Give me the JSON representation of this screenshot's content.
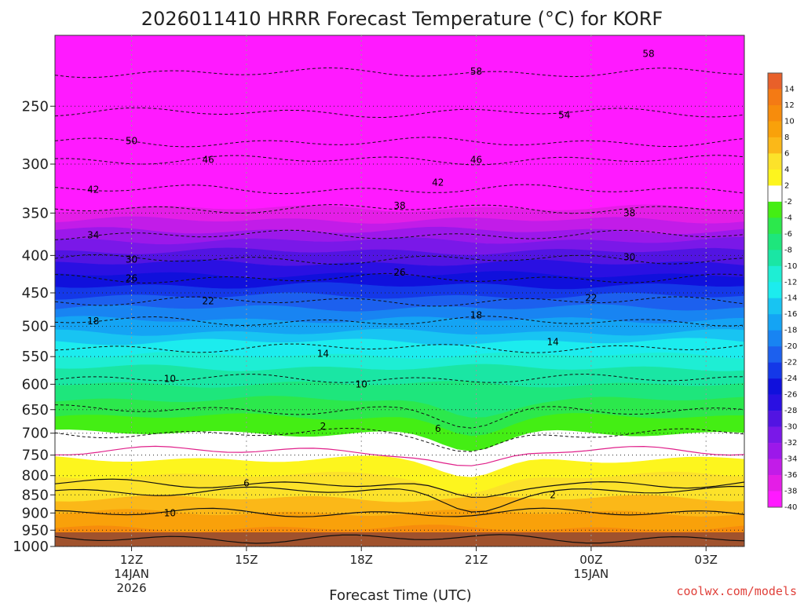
{
  "chart_data": {
    "type": "contour",
    "title": "2026011410 HRRR Forecast Temperature (°C) for KORF",
    "xlabel": "Forecast Time (UTC)",
    "ylabel": "",
    "x_ticks": [
      {
        "hour": 12,
        "label": "12Z",
        "sub1": "14JAN",
        "sub2": "2026"
      },
      {
        "hour": 15,
        "label": "15Z",
        "sub1": "",
        "sub2": ""
      },
      {
        "hour": 18,
        "label": "18Z",
        "sub1": "",
        "sub2": ""
      },
      {
        "hour": 21,
        "label": "21Z",
        "sub1": "",
        "sub2": ""
      },
      {
        "hour": 24,
        "label": "00Z",
        "sub1": "15JAN",
        "sub2": ""
      },
      {
        "hour": 27,
        "label": "03Z",
        "sub1": "",
        "sub2": ""
      }
    ],
    "xlim": [
      10,
      28
    ],
    "y_ticks": [
      250,
      300,
      350,
      400,
      450,
      500,
      550,
      600,
      650,
      700,
      750,
      800,
      850,
      900,
      950,
      1000
    ],
    "ylim": [
      200,
      1000
    ],
    "yscale": "log",
    "colorbar": {
      "labels": [
        "14",
        "12",
        "10",
        "8",
        "6",
        "4",
        "2",
        "-2",
        "-4",
        "-6",
        "-8",
        "-10",
        "-12",
        "-14",
        "-16",
        "-18",
        "-20",
        "-22",
        "-24",
        "-26",
        "-28",
        "-30",
        "-32",
        "-34",
        "-36",
        "-38",
        "-40"
      ],
      "colors": [
        "#e8602a",
        "#f47a14",
        "#f78c0c",
        "#f9a10a",
        "#fbb818",
        "#fce22a",
        "#fdf51e",
        "#ffffff",
        "#44ee14",
        "#2ce84c",
        "#1ee67c",
        "#1ae6a4",
        "#1eeed4",
        "#1cecee",
        "#18c4f2",
        "#14a4f4",
        "#1884f2",
        "#1c60ee",
        "#1438e8",
        "#1010dc",
        "#2a10e2",
        "#5214e2",
        "#7a18e8",
        "#9c18ea",
        "#c21ce8",
        "#e41ee6",
        "#ff1aff"
      ]
    },
    "fill_bands": [
      {
        "temp_c": -40,
        "color": "#ff1aff",
        "p_top": 200,
        "p_bottom": 345
      },
      {
        "temp_c": -38,
        "color": "#e41ee6",
        "p_top": 345,
        "p_bottom": 358
      },
      {
        "temp_c": -36,
        "color": "#c21ce8",
        "p_top": 358,
        "p_bottom": 370
      },
      {
        "temp_c": -34,
        "color": "#9c18ea",
        "p_top": 370,
        "p_bottom": 382
      },
      {
        "temp_c": -32,
        "color": "#7a18e8",
        "p_top": 382,
        "p_bottom": 395
      },
      {
        "temp_c": -30,
        "color": "#5214e2",
        "p_top": 395,
        "p_bottom": 410
      },
      {
        "temp_c": -28,
        "color": "#2a10e2",
        "p_top": 410,
        "p_bottom": 425
      },
      {
        "temp_c": -26,
        "color": "#1010dc",
        "p_top": 425,
        "p_bottom": 440
      },
      {
        "temp_c": -24,
        "color": "#1438e8",
        "p_top": 440,
        "p_bottom": 455
      },
      {
        "temp_c": -22,
        "color": "#1c60ee",
        "p_top": 455,
        "p_bottom": 472
      },
      {
        "temp_c": -20,
        "color": "#1884f2",
        "p_top": 472,
        "p_bottom": 490
      },
      {
        "temp_c": -18,
        "color": "#14a4f4",
        "p_top": 490,
        "p_bottom": 510
      },
      {
        "temp_c": -16,
        "color": "#18c4f2",
        "p_top": 510,
        "p_bottom": 525
      },
      {
        "temp_c": -14,
        "color": "#1cecee",
        "p_top": 525,
        "p_bottom": 548
      },
      {
        "temp_c": -12,
        "color": "#1eeed4",
        "p_top": 548,
        "p_bottom": 570
      },
      {
        "temp_c": -10,
        "color": "#1ae6a4",
        "p_top": 570,
        "p_bottom": 600
      },
      {
        "temp_c": -8,
        "color": "#1ee67c",
        "p_top": 600,
        "p_bottom": 630
      },
      {
        "temp_c": -6,
        "color": "#2ce84c",
        "p_top": 630,
        "p_bottom": 665
      },
      {
        "temp_c": -4,
        "color": "#44ee14",
        "p_top": 665,
        "p_bottom": 700
      },
      {
        "temp_c": 0,
        "color": "#ffffff",
        "p_top": 700,
        "p_bottom": 760
      },
      {
        "temp_c": 2,
        "color": "#fdf51e",
        "p_top": 760,
        "p_bottom": 800
      },
      {
        "temp_c": 4,
        "color": "#fce22a",
        "p_top": 800,
        "p_bottom": 860
      },
      {
        "temp_c": 6,
        "color": "#fbb818",
        "p_top": 860,
        "p_bottom": 900
      },
      {
        "temp_c": 8,
        "color": "#f9a10a",
        "p_top": 900,
        "p_bottom": 945
      },
      {
        "temp_c": 10,
        "color": "#f78c0c",
        "p_top": 945,
        "p_bottom": 975
      },
      {
        "temp_c": 12,
        "color": "#f47a14",
        "p_top": 975,
        "p_bottom": 1000
      }
    ],
    "contours": [
      {
        "label": "58",
        "style": "dashed",
        "p": 225,
        "label_at": [
          [
            21,
            224
          ],
          [
            25.5,
            212
          ]
        ]
      },
      {
        "label": "54",
        "style": "dashed",
        "p": 255,
        "label_at": [
          [
            23.3,
            257
          ]
        ]
      },
      {
        "label": "50",
        "style": "dashed",
        "p": 280,
        "label_at": [
          [
            12,
            279
          ]
        ]
      },
      {
        "label": "46",
        "style": "dashed",
        "p": 296,
        "label_at": [
          [
            14,
            296
          ],
          [
            21,
            296
          ]
        ]
      },
      {
        "label": "42",
        "style": "dashed",
        "p": 325,
        "label_at": [
          [
            11,
            325
          ],
          [
            20,
            318
          ]
        ]
      },
      {
        "label": "38",
        "style": "dashed",
        "p": 345,
        "label_at": [
          [
            19,
            342
          ],
          [
            25,
            350
          ]
        ]
      },
      {
        "label": "34",
        "style": "dashed",
        "p": 375,
        "label_at": [
          [
            11,
            375
          ]
        ]
      },
      {
        "label": "30",
        "style": "dashed",
        "p": 405,
        "label_at": [
          [
            12,
            405
          ],
          [
            25,
            402
          ]
        ]
      },
      {
        "label": "26",
        "style": "dashed",
        "p": 430,
        "label_at": [
          [
            12,
            430
          ],
          [
            19,
            422
          ]
        ]
      },
      {
        "label": "22",
        "style": "dashed",
        "p": 462,
        "label_at": [
          [
            14,
            462
          ],
          [
            24,
            457
          ]
        ]
      },
      {
        "label": "18",
        "style": "dashed",
        "p": 492,
        "label_at": [
          [
            11,
            492
          ],
          [
            21,
            483
          ]
        ]
      },
      {
        "label": "14",
        "style": "dashed",
        "p": 535,
        "label_at": [
          [
            17,
            545
          ],
          [
            23,
            525
          ]
        ]
      },
      {
        "label": "10",
        "style": "dashed",
        "p": 590,
        "label_at": [
          [
            13,
            590
          ],
          [
            18,
            600
          ]
        ]
      },
      {
        "label": "6",
        "style": "dashed",
        "p": 650,
        "label_at": [
          [
            20,
            690
          ]
        ]
      },
      {
        "label": "2",
        "style": "dashed",
        "p": 700,
        "label_at": [
          [
            17,
            685
          ]
        ]
      },
      {
        "label": "",
        "style": "magenta",
        "p": 740,
        "label_at": []
      },
      {
        "label": "6",
        "style": "solid",
        "p": 820,
        "label_at": [
          [
            15,
            820
          ]
        ]
      },
      {
        "label": "2",
        "style": "solid",
        "p": 840,
        "label_at": [
          [
            23,
            850
          ]
        ]
      },
      {
        "label": "10",
        "style": "solid",
        "p": 900,
        "label_at": [
          [
            13,
            900
          ]
        ]
      },
      {
        "label": "",
        "style": "solid",
        "p": 975,
        "label_at": []
      }
    ],
    "ground_color": "#a0522d",
    "legend": "colorbar right"
  },
  "credit": "coolwx.com/models"
}
